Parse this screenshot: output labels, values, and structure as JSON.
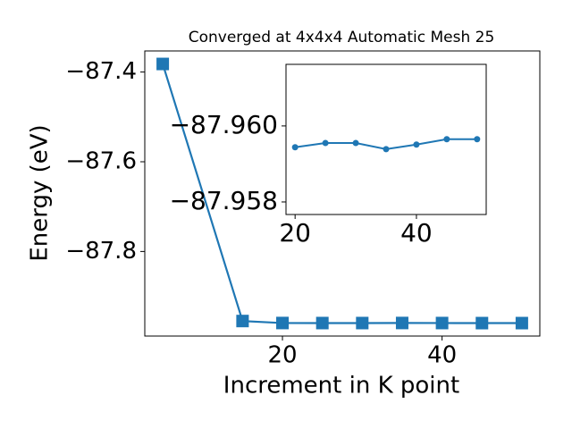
{
  "chart_data": [
    {
      "type": "line",
      "title": "Converged at 4x4x4 Automatic Mesh 25",
      "xlabel": "Increment in K point",
      "ylabel": "Energy (eV)",
      "x": [
        5,
        15,
        20,
        25,
        30,
        35,
        40,
        45,
        50
      ],
      "values": [
        -87.382,
        -87.955,
        -87.95944,
        -87.95955,
        -87.95955,
        -87.95939,
        -87.95951,
        -87.95965,
        -87.95965
      ],
      "color": "#1f77b4",
      "marker": "square",
      "xlim": [
        2.75,
        52.25
      ],
      "ylim": [
        -87.9885,
        -87.353
      ],
      "xticks": [
        20,
        40
      ],
      "yticks": [
        {
          "value": -87.4,
          "label": "−87.4"
        },
        {
          "value": -87.6,
          "label": "−87.6"
        },
        {
          "value": -87.8,
          "label": "−87.8"
        }
      ]
    },
    {
      "type": "line",
      "x": [
        20,
        25,
        30,
        35,
        40,
        45,
        50
      ],
      "values": [
        -87.95944,
        -87.95955,
        -87.95955,
        -87.95939,
        -87.95951,
        -87.95965,
        -87.95965
      ],
      "color": "#1f77b4",
      "marker": "circle",
      "xlim": [
        18.5,
        51.5
      ],
      "ylim": [
        -87.95767,
        -87.96162
      ],
      "xticks": [
        20,
        40
      ],
      "yticks": [
        {
          "value": -87.96,
          "label": "−87.960"
        },
        {
          "value": -87.958,
          "label": "−87.958"
        }
      ]
    }
  ]
}
